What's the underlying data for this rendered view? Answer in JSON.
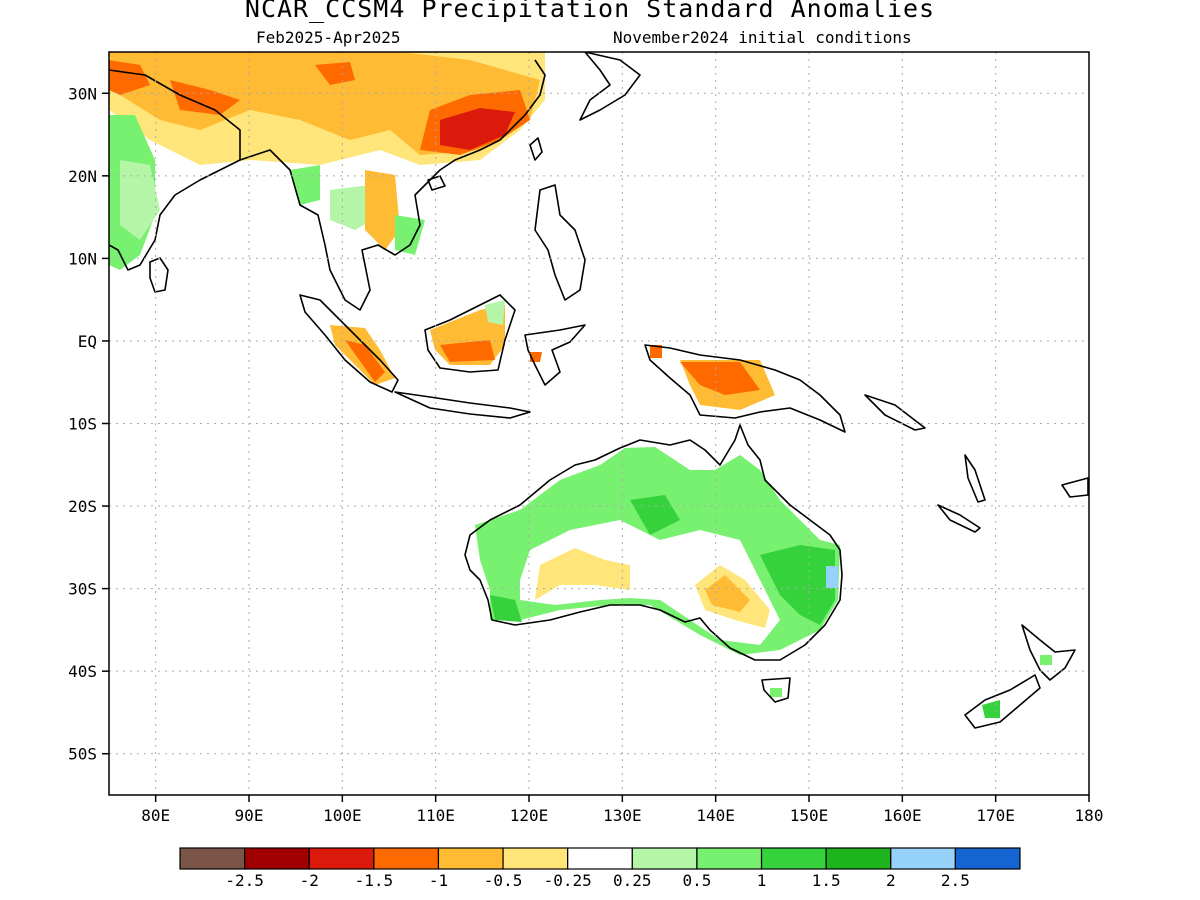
{
  "title": "NCAR_CCSM4 Precipitation Standard Anomalies",
  "period": "Feb2025-Apr2025",
  "initial_conditions": "November2024 initial conditions",
  "map": {
    "region": "Indo-Pacific",
    "lon_range": [
      75,
      180
    ],
    "lat_range": [
      -55,
      35
    ],
    "grid": "dotted",
    "lat_labels": [
      "30N",
      "20N",
      "10N",
      "EQ",
      "10S",
      "20S",
      "30S",
      "40S",
      "50S"
    ],
    "lat_values": [
      30,
      20,
      10,
      0,
      -10,
      -20,
      -30,
      -40,
      -50
    ],
    "lon_labels": [
      "80E",
      "90E",
      "100E",
      "110E",
      "120E",
      "130E",
      "140E",
      "150E",
      "160E",
      "170E",
      "180"
    ],
    "lon_values": [
      80,
      90,
      100,
      110,
      120,
      130,
      140,
      150,
      160,
      170,
      180
    ]
  },
  "colorbar": {
    "colors": [
      "#7a5547",
      "#a00000",
      "#dc1a0c",
      "#ff6a00",
      "#ffbb33",
      "#ffe57a",
      "#ffffff",
      "#b4f5a8",
      "#78f070",
      "#36d23c",
      "#1eb41e",
      "#96d2fa",
      "#1464d2"
    ],
    "labels": [
      "-2.5",
      "-2",
      "-1.5",
      "-1",
      "-0.5",
      "-0.25",
      "0.25",
      "0.5",
      "1",
      "1.5",
      "2",
      "2.5"
    ]
  },
  "colors": {
    "coastline": "#000000",
    "grid": "#aaaaaa"
  }
}
